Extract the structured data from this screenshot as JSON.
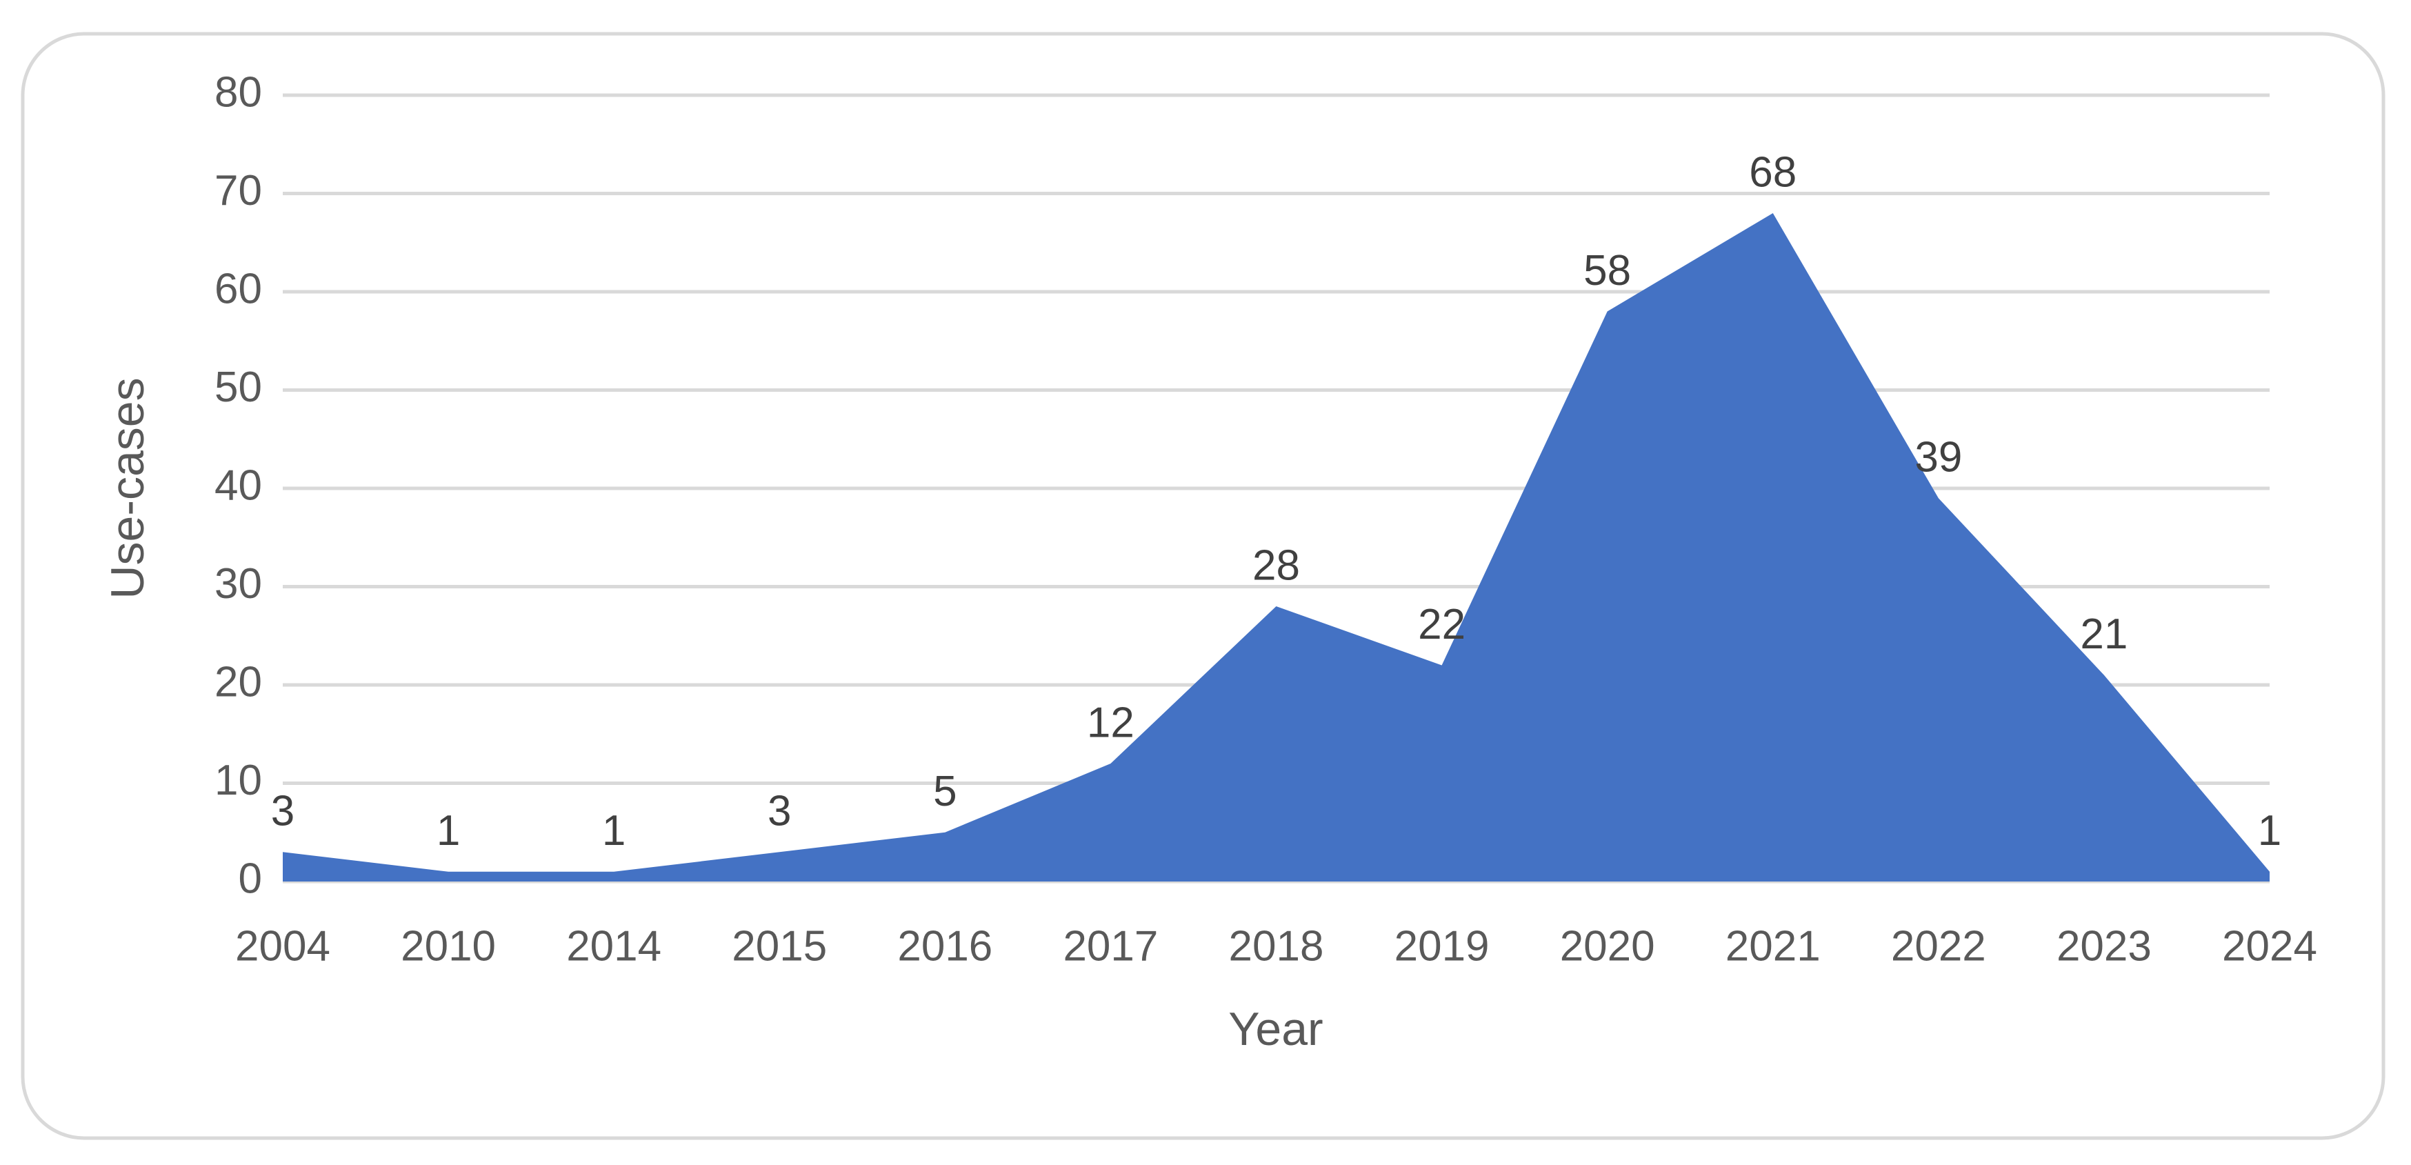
{
  "chart_data": {
    "type": "area",
    "x_label": "Year",
    "y_label": "Use-cases",
    "categories": [
      "2004",
      "2010",
      "2014",
      "2015",
      "2016",
      "2017",
      "2018",
      "2019",
      "2020",
      "2021",
      "2022",
      "2023",
      "2024"
    ],
    "values": [
      3,
      1,
      1,
      3,
      5,
      12,
      28,
      22,
      58,
      68,
      39,
      21,
      1
    ],
    "color": "#4472c4",
    "ylim": [
      0,
      80
    ],
    "yticks": [
      0,
      10,
      20,
      30,
      40,
      50,
      60,
      70,
      80
    ],
    "grid": true
  }
}
